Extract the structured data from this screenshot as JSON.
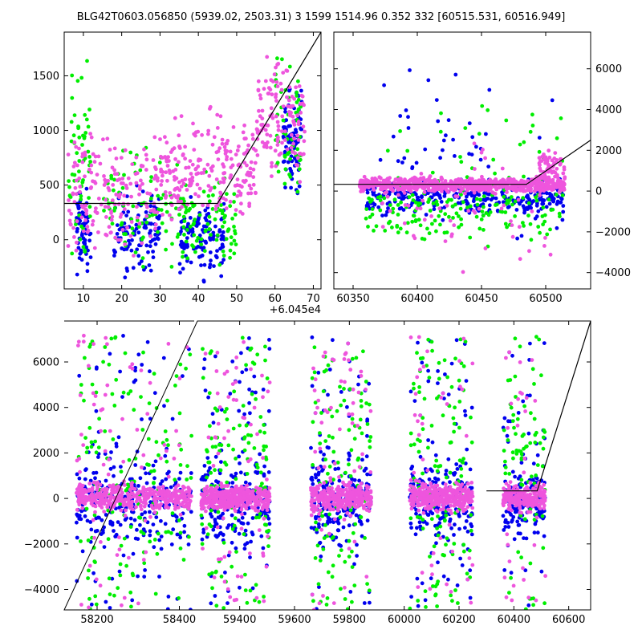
{
  "title": "BLG42T0603.056850 (5939.02, 2503.31)   3 1599 1514.96 0.352 332 [60515.531, 60516.949]",
  "colors": {
    "series_a": "#0000ee",
    "series_b": "#00ee00",
    "series_c": "#ee55dd",
    "model": "#000000"
  },
  "chart_data": [
    {
      "type": "scatter",
      "id": "top-left",
      "xlim": [
        5,
        72
      ],
      "ylim": [
        -450,
        1900
      ],
      "x_offset_label": "+6.045e4",
      "xticks": [
        10,
        20,
        30,
        40,
        50,
        60,
        70
      ],
      "yticks": [
        0,
        500,
        1000,
        1500
      ],
      "yaxis_side": "left",
      "model_line": {
        "x": [
          5,
          45,
          72
        ],
        "y": [
          332,
          332,
          1900
        ]
      },
      "series": [
        {
          "color_key": "series_a",
          "clusters": [
            [
              8,
              12,
              -450,
              600,
              70
            ],
            [
              18,
              30,
              -450,
              600,
              110
            ],
            [
              35,
              47,
              -450,
              500,
              120
            ],
            [
              62,
              67,
              300,
              1600,
              90
            ]
          ]
        },
        {
          "color_key": "series_b",
          "clusters": [
            [
              6,
              12,
              -450,
              1900,
              60
            ],
            [
              15,
              35,
              -450,
              1000,
              80
            ],
            [
              35,
              50,
              -450,
              700,
              90
            ],
            [
              60,
              67,
              0,
              1900,
              60
            ]
          ]
        },
        {
          "color_key": "series_c",
          "clusters": [
            [
              6,
              30,
              -400,
              1200,
              180
            ],
            [
              30,
              55,
              0,
              1300,
              220
            ],
            [
              55,
              68,
              300,
              1900,
              130
            ]
          ]
        }
      ]
    },
    {
      "type": "scatter",
      "id": "top-right",
      "xlim": [
        60335,
        60535
      ],
      "ylim": [
        -4800,
        7800
      ],
      "xticks": [
        60350,
        60400,
        60450,
        60500
      ],
      "yticks": [
        -4000,
        -2000,
        0,
        2000,
        4000,
        6000
      ],
      "yaxis_side": "right",
      "model_line": {
        "x": [
          60335,
          60485,
          60535
        ],
        "y": [
          332,
          332,
          2500
        ]
      },
      "series": [
        {
          "color_key": "series_a",
          "clusters": [
            [
              60360,
              60515,
              -1500,
              800,
              300
            ],
            [
              60370,
              60515,
              -4800,
              7500,
              60
            ]
          ]
        },
        {
          "color_key": "series_b",
          "clusters": [
            [
              60360,
              60515,
              -3000,
              1500,
              150
            ],
            [
              60370,
              60515,
              -4800,
              7000,
              50
            ]
          ]
        },
        {
          "color_key": "series_c",
          "clusters": [
            [
              60355,
              60515,
              -200,
              800,
              700
            ],
            [
              60370,
              60515,
              -4800,
              4000,
              60
            ],
            [
              60495,
              60515,
              0,
              2200,
              60
            ]
          ]
        }
      ]
    },
    {
      "type": "scatter",
      "id": "bottom",
      "xlim": [
        58120,
        60680
      ],
      "ylim": [
        -4900,
        7800
      ],
      "xticks": [
        58200,
        58400,
        59400,
        59600,
        59800,
        60000,
        60200,
        60400,
        60600
      ],
      "tick_labels": [
        "58200",
        "58400",
        "59400",
        "59600",
        "59800",
        "60000",
        "60200",
        "60400",
        "60600"
      ],
      "yticks": [
        -4000,
        -2000,
        0,
        2000,
        4000,
        6000
      ],
      "yaxis_side": "left",
      "x_break": {
        "left_max": 58440,
        "right_min": 59240,
        "left_frac": 0.25
      },
      "model_line": {
        "x": [
          60300,
          60485,
          60680
        ],
        "y": [
          332,
          332,
          7800
        ]
      },
      "seasons": [
        [
          58150,
          58430
        ],
        [
          59260,
          59510
        ],
        [
          59660,
          59880
        ],
        [
          60020,
          60250
        ],
        [
          60360,
          60515
        ]
      ],
      "series": [
        {
          "color_key": "series_a",
          "density": 260,
          "ylo": -2800,
          "yhi": 2500,
          "spread": 0.25
        },
        {
          "color_key": "series_b",
          "density": 140,
          "ylo": -4900,
          "yhi": 7500,
          "spread": 0.6
        },
        {
          "color_key": "series_c",
          "density": 420,
          "ylo": -800,
          "yhi": 900,
          "spread": 0.15
        }
      ]
    }
  ]
}
